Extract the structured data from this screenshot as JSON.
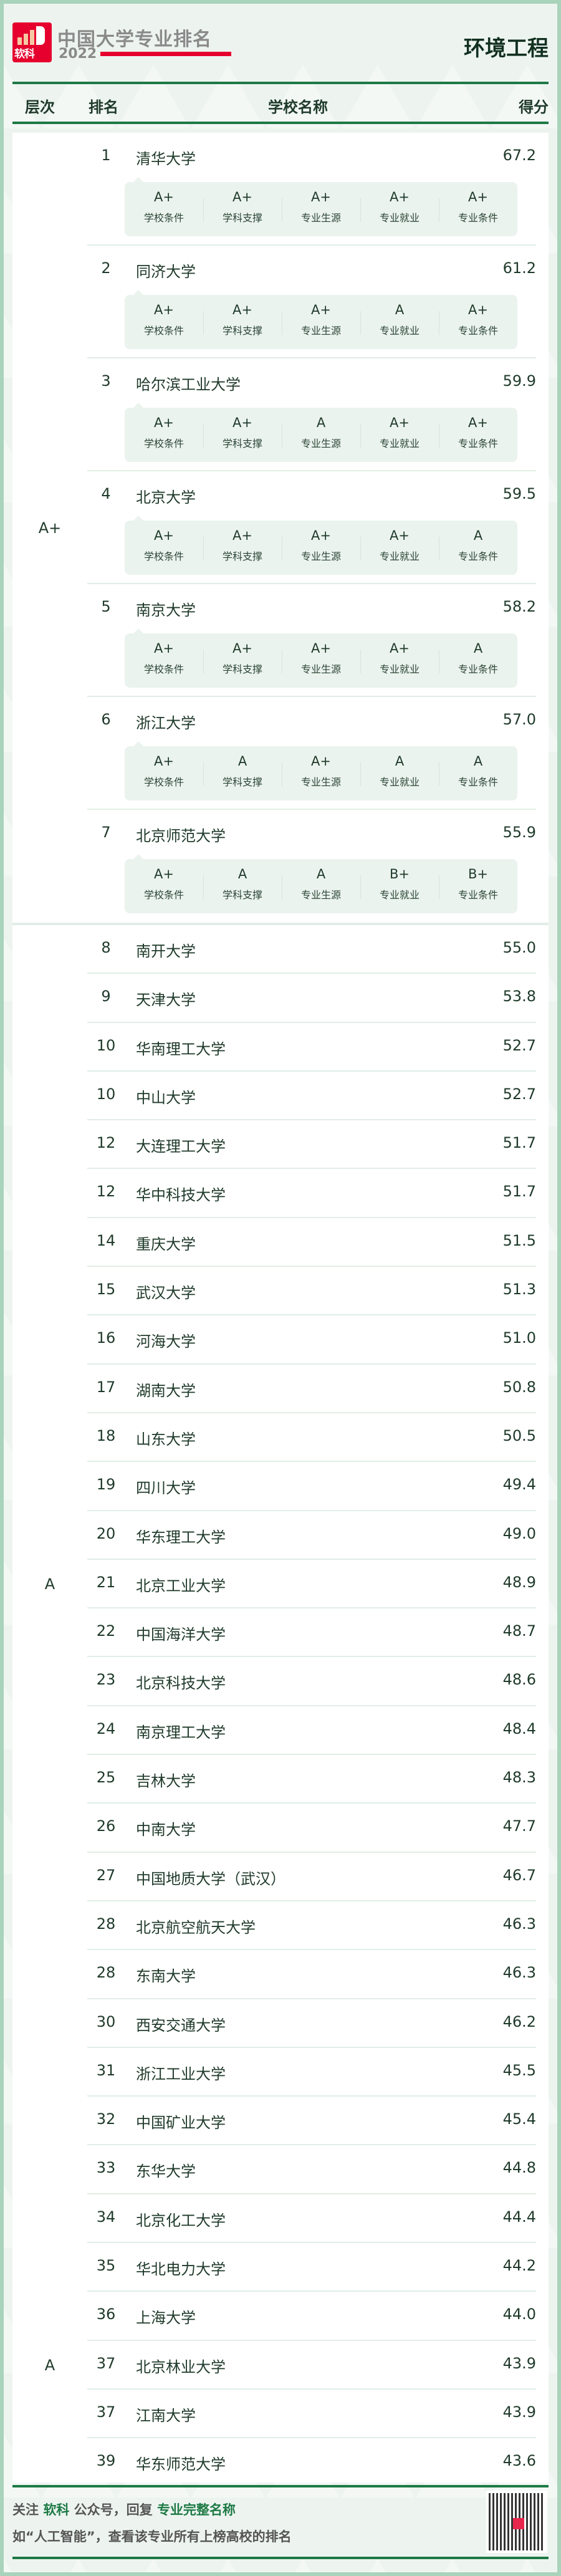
{
  "header": {
    "brand_logo_text": "软科",
    "brand_title": "中国大学专业排名",
    "brand_year": "2022",
    "major": "环境工程"
  },
  "table_header": {
    "tier": "层次",
    "rank": "排名",
    "school": "学校名称",
    "score": "得分"
  },
  "grade_labels": [
    "学校条件",
    "学科支撑",
    "专业生源",
    "专业就业",
    "专业条件"
  ],
  "tiers": [
    "A+",
    "A",
    "A"
  ],
  "top_entries": [
    {
      "rank": "1",
      "name": "清华大学",
      "score": "67.2",
      "grades": [
        "A+",
        "A+",
        "A+",
        "A+",
        "A+"
      ]
    },
    {
      "rank": "2",
      "name": "同济大学",
      "score": "61.2",
      "grades": [
        "A+",
        "A+",
        "A+",
        "A",
        "A+"
      ]
    },
    {
      "rank": "3",
      "name": "哈尔滨工业大学",
      "score": "59.9",
      "grades": [
        "A+",
        "A+",
        "A",
        "A+",
        "A+"
      ]
    },
    {
      "rank": "4",
      "name": "北京大学",
      "score": "59.5",
      "grades": [
        "A+",
        "A+",
        "A+",
        "A+",
        "A"
      ]
    },
    {
      "rank": "5",
      "name": "南京大学",
      "score": "58.2",
      "grades": [
        "A+",
        "A+",
        "A+",
        "A+",
        "A"
      ]
    },
    {
      "rank": "6",
      "name": "浙江大学",
      "score": "57.0",
      "grades": [
        "A+",
        "A",
        "A+",
        "A",
        "A"
      ]
    },
    {
      "rank": "7",
      "name": "北京师范大学",
      "score": "55.9",
      "grades": [
        "A+",
        "A",
        "A",
        "B+",
        "B+"
      ]
    }
  ],
  "rows": [
    {
      "rank": "8",
      "name": "南开大学",
      "score": "55.0"
    },
    {
      "rank": "9",
      "name": "天津大学",
      "score": "53.8"
    },
    {
      "rank": "10",
      "name": "华南理工大学",
      "score": "52.7"
    },
    {
      "rank": "10",
      "name": "中山大学",
      "score": "52.7"
    },
    {
      "rank": "12",
      "name": "大连理工大学",
      "score": "51.7"
    },
    {
      "rank": "12",
      "name": "华中科技大学",
      "score": "51.7"
    },
    {
      "rank": "14",
      "name": "重庆大学",
      "score": "51.5"
    },
    {
      "rank": "15",
      "name": "武汉大学",
      "score": "51.3"
    },
    {
      "rank": "16",
      "name": "河海大学",
      "score": "51.0"
    },
    {
      "rank": "17",
      "name": "湖南大学",
      "score": "50.8"
    },
    {
      "rank": "18",
      "name": "山东大学",
      "score": "50.5"
    },
    {
      "rank": "19",
      "name": "四川大学",
      "score": "49.4"
    },
    {
      "rank": "20",
      "name": "华东理工大学",
      "score": "49.0"
    },
    {
      "rank": "21",
      "name": "北京工业大学",
      "score": "48.9"
    },
    {
      "rank": "22",
      "name": "中国海洋大学",
      "score": "48.7"
    },
    {
      "rank": "23",
      "name": "北京科技大学",
      "score": "48.6"
    },
    {
      "rank": "24",
      "name": "南京理工大学",
      "score": "48.4"
    },
    {
      "rank": "25",
      "name": "吉林大学",
      "score": "48.3"
    },
    {
      "rank": "26",
      "name": "中南大学",
      "score": "47.7"
    },
    {
      "rank": "27",
      "name": "中国地质大学（武汉）",
      "score": "46.7"
    },
    {
      "rank": "28",
      "name": "北京航空航天大学",
      "score": "46.3"
    },
    {
      "rank": "28",
      "name": "东南大学",
      "score": "46.3"
    },
    {
      "rank": "30",
      "name": "西安交通大学",
      "score": "46.2"
    },
    {
      "rank": "31",
      "name": "浙江工业大学",
      "score": "45.5"
    },
    {
      "rank": "32",
      "name": "中国矿业大学",
      "score": "45.4"
    },
    {
      "rank": "33",
      "name": "东华大学",
      "score": "44.8"
    },
    {
      "rank": "34",
      "name": "北京化工大学",
      "score": "44.4"
    },
    {
      "rank": "35",
      "name": "华北电力大学",
      "score": "44.2"
    },
    {
      "rank": "36",
      "name": "上海大学",
      "score": "44.0"
    },
    {
      "rank": "37",
      "name": "北京林业大学",
      "score": "43.9"
    },
    {
      "rank": "37",
      "name": "江南大学",
      "score": "43.9"
    },
    {
      "rank": "39",
      "name": "华东师范大学",
      "score": "43.6"
    }
  ],
  "footer": {
    "l1_a": "关注 ",
    "l1_b": "软科",
    "l1_c": " 公众号，回复 ",
    "l1_d": "专业完整名称",
    "line2": "如“人工智能”，查看该专业所有上榜高校的排名"
  },
  "colors": {
    "accent_green": "#1e7a45",
    "brand_red": "#e5002d",
    "text": "#1f3a2a"
  }
}
